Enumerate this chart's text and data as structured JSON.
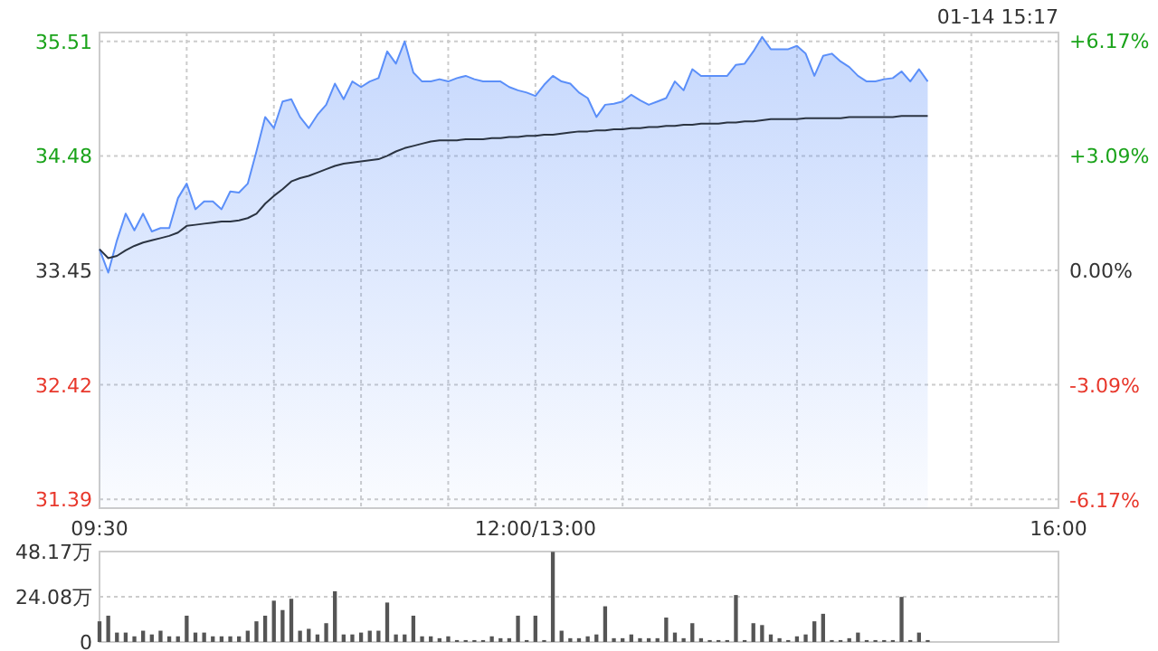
{
  "chart_data": [
    {
      "type": "line",
      "annotations": [
        "01-14 15:17"
      ],
      "categories": [
        "09:30",
        null,
        null,
        null,
        null,
        null,
        null,
        null,
        null,
        null,
        null,
        null,
        null,
        null,
        null,
        null,
        null,
        null,
        null,
        null,
        null,
        null,
        null,
        null,
        null,
        null,
        null,
        null,
        null,
        null,
        null,
        null,
        null,
        null,
        null,
        null,
        null,
        null,
        null,
        null,
        null,
        null,
        null,
        null,
        null,
        null,
        null,
        null,
        null,
        null,
        "12:00/13:00",
        null,
        null,
        null,
        null,
        null,
        null,
        null,
        null,
        null,
        null,
        null,
        null,
        null,
        null,
        null,
        null,
        null,
        null,
        null,
        null,
        null,
        null,
        null,
        null,
        null,
        null,
        null,
        null,
        null,
        null,
        null,
        null,
        null,
        null,
        null,
        null,
        null,
        null,
        null,
        null,
        null,
        null,
        null,
        null,
        null,
        null,
        null,
        null,
        null,
        null,
        null,
        null,
        null,
        null,
        null,
        null,
        null,
        null,
        null,
        "16:00"
      ],
      "ylim": [
        31.31,
        35.59
      ],
      "yticks": [
        31.39,
        32.42,
        33.45,
        34.48,
        35.51
      ],
      "y2lim": [
        -6.4,
        6.4
      ],
      "y2ticks": [
        {
          "value": -6.17,
          "label": "-6.17%"
        },
        {
          "value": -3.09,
          "label": "-3.09%"
        },
        {
          "value": 0,
          "label": "0.00%"
        },
        {
          "value": 3.09,
          "label": "+3.09%"
        },
        {
          "value": 6.17,
          "label": "+6.17%"
        }
      ],
      "grid": true,
      "series": [
        {
          "type": "area",
          "color": "#5b8ff9",
          "values": [
            33.64,
            33.43,
            33.72,
            33.96,
            33.81,
            33.96,
            33.8,
            33.83,
            33.83,
            34.1,
            34.23,
            34.0,
            34.07,
            34.07,
            34.0,
            34.16,
            34.15,
            34.23,
            34.52,
            34.83,
            34.73,
            34.97,
            34.99,
            34.83,
            34.73,
            34.85,
            34.94,
            35.13,
            34.99,
            35.15,
            35.1,
            35.15,
            35.18,
            35.42,
            35.31,
            35.51,
            35.23,
            35.15,
            35.15,
            35.17,
            35.15,
            35.18,
            35.2,
            35.17,
            35.15,
            35.15,
            35.15,
            35.1,
            35.07,
            35.05,
            35.02,
            35.12,
            35.2,
            35.15,
            35.13,
            35.05,
            35.0,
            34.83,
            34.94,
            34.95,
            34.97,
            35.03,
            34.98,
            34.94,
            34.97,
            35.0,
            35.15,
            35.07,
            35.26,
            35.2,
            35.2,
            35.2,
            35.2,
            35.3,
            35.31,
            35.42,
            35.55,
            35.44,
            35.44,
            35.44,
            35.47,
            35.4,
            35.2,
            35.38,
            35.4,
            35.33,
            35.28,
            35.2,
            35.15,
            35.15,
            35.17,
            35.18,
            35.24,
            35.15,
            35.26,
            35.15,
            null,
            null,
            null,
            null,
            null,
            null,
            null,
            null,
            null,
            null,
            null,
            null,
            null,
            null,
            null
          ]
        },
        {
          "color": "#2b3442",
          "values": [
            33.64,
            33.56,
            33.58,
            33.63,
            33.67,
            33.7,
            33.72,
            33.74,
            33.76,
            33.79,
            33.85,
            33.86,
            33.87,
            33.88,
            33.89,
            33.89,
            33.9,
            33.92,
            33.96,
            34.05,
            34.12,
            34.18,
            34.25,
            34.28,
            34.3,
            34.33,
            34.36,
            34.39,
            34.41,
            34.42,
            34.43,
            34.44,
            34.45,
            34.48,
            34.52,
            34.55,
            34.57,
            34.59,
            34.61,
            34.62,
            34.62,
            34.62,
            34.63,
            34.63,
            34.63,
            34.64,
            34.64,
            34.65,
            34.65,
            34.66,
            34.66,
            34.67,
            34.67,
            34.68,
            34.69,
            34.7,
            34.7,
            34.71,
            34.71,
            34.72,
            34.72,
            34.73,
            34.73,
            34.74,
            34.74,
            34.75,
            34.75,
            34.76,
            34.76,
            34.77,
            34.77,
            34.77,
            34.78,
            34.78,
            34.79,
            34.79,
            34.8,
            34.81,
            34.81,
            34.81,
            34.81,
            34.82,
            34.82,
            34.82,
            34.82,
            34.82,
            34.83,
            34.83,
            34.83,
            34.83,
            34.83,
            34.83,
            34.84,
            34.84,
            34.84,
            34.84,
            null,
            null,
            null,
            null,
            null,
            null,
            null,
            null,
            null,
            null,
            null,
            null,
            null,
            null,
            null
          ]
        }
      ]
    },
    {
      "type": "bar",
      "tick_labels": "y",
      "ylim": [
        0,
        48.17
      ],
      "categories": [
        null,
        null,
        null,
        null,
        null,
        null,
        null,
        null,
        null,
        null,
        null,
        null,
        null,
        null,
        null,
        null,
        null,
        null,
        null,
        null,
        null,
        null,
        null,
        null,
        null,
        null,
        null,
        null,
        null,
        null,
        null,
        null,
        null,
        null,
        null,
        null,
        null,
        null,
        null,
        null,
        null,
        null,
        null,
        null,
        null,
        null,
        null,
        null,
        null,
        null,
        null,
        null,
        null,
        null,
        null,
        null,
        null,
        null,
        null,
        null,
        null,
        null,
        null,
        null,
        null,
        null,
        null,
        null,
        null,
        null,
        null,
        null,
        null,
        null,
        null,
        null,
        null,
        null,
        null,
        null,
        null,
        null,
        null,
        null,
        null,
        null,
        null,
        null,
        null,
        null,
        null,
        null,
        null,
        null,
        null,
        null,
        null,
        null,
        null,
        null,
        null,
        null,
        null,
        null,
        null,
        null,
        null,
        null,
        null,
        null,
        null
      ],
      "yticks": [
        0,
        {
          "value": 24.08,
          "label": "24.08万"
        },
        {
          "value": 48.17,
          "label": "48.17万"
        }
      ],
      "grid": "y",
      "series": [
        {
          "color": "#555555",
          "values": [
            11,
            14,
            5,
            5,
            3,
            6,
            4,
            6,
            3,
            3,
            14,
            5,
            5,
            3,
            3,
            3,
            3,
            6,
            11,
            14,
            22,
            17,
            23,
            6,
            7,
            4,
            10,
            27,
            4,
            4,
            5,
            6,
            6,
            21,
            4,
            4,
            14,
            3,
            3,
            2,
            3,
            1,
            1,
            1,
            1,
            3,
            2,
            2,
            14,
            1,
            14,
            1,
            48,
            6,
            2,
            2,
            3,
            4,
            19,
            2,
            2,
            4,
            2,
            2,
            2,
            13,
            5,
            2,
            10,
            2,
            1,
            1,
            1,
            25,
            1,
            10,
            9,
            4,
            2,
            1,
            3,
            4,
            11,
            15,
            1,
            1,
            2,
            5,
            1,
            1,
            1,
            1,
            24,
            1,
            5,
            1,
            null,
            null,
            null,
            null,
            null,
            null,
            null,
            null,
            null,
            null,
            null,
            null,
            null,
            null,
            null
          ]
        }
      ]
    }
  ]
}
